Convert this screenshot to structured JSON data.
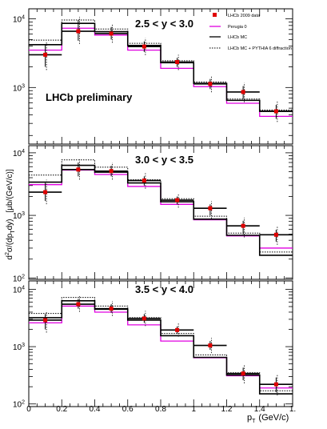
{
  "chart_data": {
    "type": "line",
    "xlabel_main": "p",
    "xlabel_sub": "T",
    "xlabel_unit": "(GeV/c)",
    "ylabel_parts": [
      "d",
      "2",
      "σ/(dp",
      "T",
      "dy)",
      "[μb/(GeV/c)]"
    ],
    "xlim": [
      0,
      1.6
    ],
    "x_ticks": [
      "0",
      "0.2",
      "0.4",
      "0.6",
      "0.8",
      "1",
      "1.2",
      "1.4",
      "1."
    ],
    "y_scale": "log",
    "legend": {
      "placement": "top-right",
      "entries": [
        {
          "label": "LHCb 2009 data",
          "style": "marker",
          "color": "#e00000"
        },
        {
          "label": "Perugia 0",
          "style": "line",
          "color": "#e000e0"
        },
        {
          "label": "LHCb MC",
          "style": "line",
          "color": "#000000"
        },
        {
          "label": "LHCb MC + PYTHIA 6 diffraction",
          "style": "dotted",
          "color": "#000000"
        }
      ]
    },
    "annotation": "LHCb preliminary",
    "bin_edges": [
      0,
      0.2,
      0.4,
      0.6,
      0.8,
      1.0,
      1.2,
      1.4,
      1.6
    ],
    "panels": [
      {
        "range_label": "2.5 < y < 3.0",
        "ylim": [
          150,
          14000
        ],
        "y_ticks": [
          {
            "base": "10",
            "exp": "4",
            "value": 10000
          },
          {
            "base": "10",
            "exp": "3",
            "value": 1000
          }
        ],
        "series": [
          {
            "name": "LHCb 2009 data",
            "kind": "data",
            "values": [
              3000,
              6600,
              6100,
              3950,
              2350,
              1130,
              860,
              450
            ],
            "err_low": [
              2000,
              4800,
              5000,
              3300,
              2000,
              950,
              680,
              350
            ],
            "err_high": [
              4200,
              9600,
              7600,
              4700,
              2700,
              1330,
              1050,
              560
            ]
          },
          {
            "name": "Perugia 0",
            "kind": "magenta",
            "values": [
              3500,
              7300,
              5800,
              3500,
              1900,
              1030,
              590,
              380
            ]
          },
          {
            "name": "LHCb MC",
            "kind": "solid",
            "values": [
              4200,
              8600,
              6500,
              4100,
              2300,
              1150,
              650,
              450
            ]
          },
          {
            "name": "LHCb MC + PYTHIA 6 diffraction",
            "kind": "dotted",
            "values": [
              4900,
              9600,
              7100,
              4400,
              2450,
              1200,
              680,
              470
            ]
          }
        ]
      },
      {
        "range_label": "3.0 < y < 3.5",
        "ylim": [
          95,
          13000
        ],
        "y_ticks": [
          {
            "base": "10",
            "exp": "4",
            "value": 10000
          },
          {
            "base": "10",
            "exp": "3",
            "value": 1000
          },
          {
            "base": "10",
            "exp": "2",
            "value": 100
          }
        ],
        "series": [
          {
            "name": "LHCb 2009 data",
            "kind": "data",
            "values": [
              2350,
              5400,
              5100,
              3600,
              1750,
              1300,
              680,
              490
            ],
            "err_low": [
              1700,
              4200,
              4200,
              3000,
              1500,
              1000,
              500,
              380
            ],
            "err_high": [
              3300,
              7000,
              6200,
              4200,
              2000,
              1500,
              820,
              590
            ]
          },
          {
            "name": "Perugia 0",
            "kind": "magenta",
            "values": [
              3100,
              5300,
              4500,
              2900,
              1500,
              850,
              470,
              300
            ]
          },
          {
            "name": "LHCb MC",
            "kind": "solid",
            "values": [
              3400,
              6300,
              4900,
              3300,
              1650,
              870,
              480,
              230
            ]
          },
          {
            "name": "LHCb MC + PYTHIA 6 diffraction",
            "kind": "dotted",
            "values": [
              4400,
              7700,
              5900,
              3700,
              1850,
              970,
              520,
              260
            ]
          }
        ]
      },
      {
        "range_label": "3.5 < y < 4.0",
        "ylim": [
          90,
          14000
        ],
        "y_ticks": [
          {
            "base": "10",
            "exp": "4",
            "value": 10000
          },
          {
            "base": "10",
            "exp": "3",
            "value": 1000
          },
          {
            "base": "10",
            "exp": "2",
            "value": 100
          }
        ],
        "series": [
          {
            "name": "LHCb 2009 data",
            "kind": "data",
            "values": [
              2900,
              5500,
              4600,
              3100,
              1950,
              1050,
              340,
              220
            ],
            "err_low": [
              2000,
              4600,
              3900,
              2600,
              1700,
              880,
              260,
              160
            ],
            "err_high": [
              3700,
              6800,
              5500,
              3700,
              2250,
              1250,
              430,
              290
            ]
          },
          {
            "name": "Perugia 0",
            "kind": "magenta",
            "values": [
              2600,
              5100,
              4000,
              2400,
              1250,
              640,
              310,
              190
            ]
          },
          {
            "name": "LHCb MC",
            "kind": "solid",
            "values": [
              3200,
              6300,
              4500,
              2900,
              1550,
              650,
              320,
              150
            ]
          },
          {
            "name": "LHCb MC + PYTHIA 6 diffraction",
            "kind": "dotted",
            "values": [
              3800,
              7200,
              5100,
              3200,
              1700,
              720,
              350,
              170
            ]
          }
        ]
      }
    ]
  }
}
